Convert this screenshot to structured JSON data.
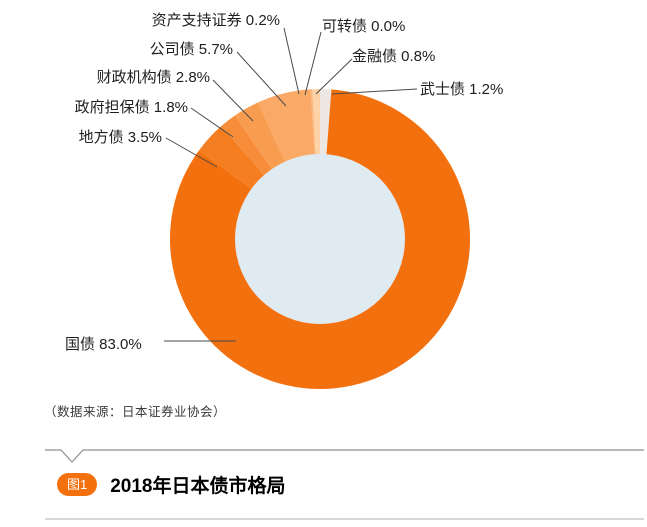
{
  "chart_data": {
    "type": "donut",
    "title": "2018年日本债市格局",
    "source": "（数据来源：日本证券业协会）",
    "legend_position": "callout-labels",
    "hole_color": "#dfeaf1",
    "accent_color": "#f3700e",
    "start_angle_deg": -90,
    "direction": "clockwise",
    "slices": [
      {
        "id": "samurai-bond",
        "label": "武士债",
        "value": 1.2,
        "display": "武士债 1.2%",
        "color": "#ece7e2"
      },
      {
        "id": "government-bond",
        "label": "国债",
        "value": 83.0,
        "display": "国债 83.0%",
        "color": "#f3700e"
      },
      {
        "id": "local-bond",
        "label": "地方债",
        "value": 3.5,
        "display": "地方债 3.5%",
        "color": "#f57e20"
      },
      {
        "id": "gov-guaranteed-bond",
        "label": "政府担保债",
        "value": 1.8,
        "display": "政府担保债 1.8%",
        "color": "#f78d38"
      },
      {
        "id": "fiscal-agency-bond",
        "label": "财政机构债",
        "value": 2.8,
        "display": "财政机构债 2.8%",
        "color": "#f89c50"
      },
      {
        "id": "corporate-bond",
        "label": "公司债",
        "value": 5.7,
        "display": "公司债 5.7%",
        "color": "#faaa66"
      },
      {
        "id": "asset-backed-sec",
        "label": "资产支持证券",
        "value": 0.2,
        "display": "资产支持证券 0.2%",
        "color": "#fbb87e"
      },
      {
        "id": "convertible-bond",
        "label": "可转债",
        "value": 0.0,
        "display": "可转债 0.0%",
        "color": "#fcc392"
      },
      {
        "id": "financial-bond",
        "label": "金融债",
        "value": 0.8,
        "display": "金融债 0.8%",
        "color": "#fdd2a6"
      }
    ]
  },
  "figure": {
    "badge": "图1",
    "title": "2018年日本债市格局"
  }
}
